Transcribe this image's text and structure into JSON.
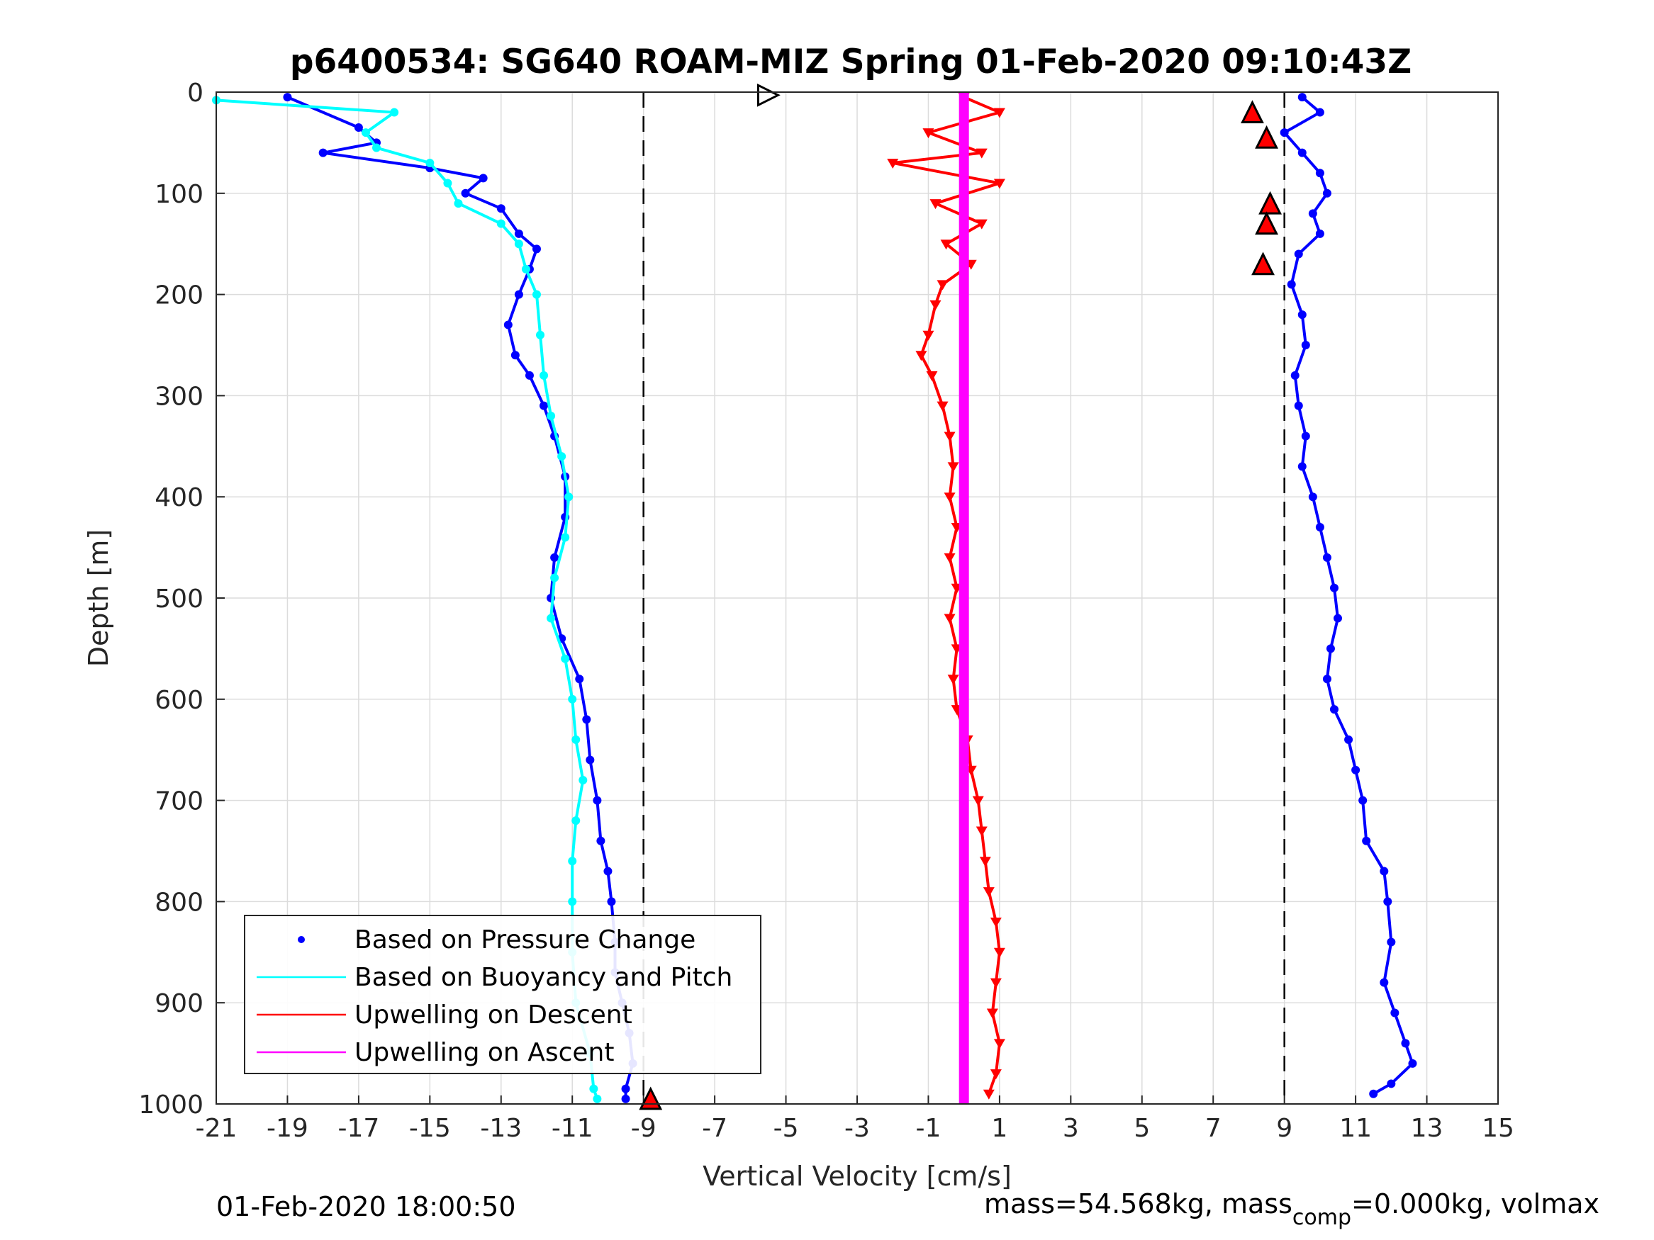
{
  "chart_data": {
    "type": "scatter",
    "title": "p6400534: SG640 ROAM-MIZ Spring 01-Feb-2020 09:10:43Z",
    "xlabel": "Vertical Velocity [cm/s]",
    "ylabel": "Depth [m]",
    "xlim": [
      -21,
      15
    ],
    "ylim": [
      1000,
      0
    ],
    "y_reversed": true,
    "grid": true,
    "xticks": [
      "-21",
      "-19",
      "-17",
      "-15",
      "-13",
      "-11",
      "-9",
      "-7",
      "-5",
      "-3",
      "-1",
      "1",
      "3",
      "5",
      "7",
      "9",
      "11",
      "13",
      "15"
    ],
    "yticks": [
      "0",
      "100",
      "200",
      "300",
      "400",
      "500",
      "600",
      "700",
      "800",
      "900",
      "1000"
    ],
    "threshold_lines": [
      -9,
      9
    ],
    "legend": {
      "placement": "bottom-left",
      "entries": [
        {
          "label": "Based on Pressure Change",
          "color": "#0000ff",
          "style": "dot"
        },
        {
          "label": "Based on Buoyancy and Pitch",
          "color": "#00ffff",
          "style": "line"
        },
        {
          "label": "Upwelling on Descent",
          "color": "#ff0000",
          "style": "line"
        },
        {
          "label": "Upwelling on Ascent",
          "color": "#ff00ff",
          "style": "line"
        }
      ]
    },
    "series": [
      {
        "name": "Based on Pressure Change (descent)",
        "color": "#0000ff",
        "points": [
          [
            -19,
            5
          ],
          [
            -17,
            35
          ],
          [
            -16.5,
            50
          ],
          [
            -18,
            60
          ],
          [
            -15,
            75
          ],
          [
            -13.5,
            85
          ],
          [
            -14,
            100
          ],
          [
            -13,
            115
          ],
          [
            -12.5,
            140
          ],
          [
            -12,
            155
          ],
          [
            -12.2,
            175
          ],
          [
            -12.5,
            200
          ],
          [
            -12.8,
            230
          ],
          [
            -12.6,
            260
          ],
          [
            -12.2,
            280
          ],
          [
            -11.8,
            310
          ],
          [
            -11.5,
            340
          ],
          [
            -11.2,
            380
          ],
          [
            -11.2,
            420
          ],
          [
            -11.5,
            460
          ],
          [
            -11.6,
            500
          ],
          [
            -11.3,
            540
          ],
          [
            -10.8,
            580
          ],
          [
            -10.6,
            620
          ],
          [
            -10.5,
            660
          ],
          [
            -10.3,
            700
          ],
          [
            -10.2,
            740
          ],
          [
            -10.0,
            770
          ],
          [
            -9.9,
            800
          ],
          [
            -9.8,
            840
          ],
          [
            -9.8,
            870
          ],
          [
            -9.6,
            900
          ],
          [
            -9.4,
            930
          ],
          [
            -9.3,
            960
          ],
          [
            -9.5,
            985
          ],
          [
            -9.5,
            995
          ]
        ]
      },
      {
        "name": "Based on Buoyancy and Pitch",
        "color": "#00ffff",
        "points": [
          [
            -21,
            8
          ],
          [
            -16,
            20
          ],
          [
            -16.8,
            40
          ],
          [
            -16.5,
            55
          ],
          [
            -15,
            70
          ],
          [
            -14.5,
            90
          ],
          [
            -14.2,
            110
          ],
          [
            -13,
            130
          ],
          [
            -12.5,
            150
          ],
          [
            -12.3,
            175
          ],
          [
            -12,
            200
          ],
          [
            -11.9,
            240
          ],
          [
            -11.8,
            280
          ],
          [
            -11.6,
            320
          ],
          [
            -11.3,
            360
          ],
          [
            -11.1,
            400
          ],
          [
            -11.2,
            440
          ],
          [
            -11.5,
            480
          ],
          [
            -11.6,
            520
          ],
          [
            -11.2,
            560
          ],
          [
            -11.0,
            600
          ],
          [
            -10.9,
            640
          ],
          [
            -10.7,
            680
          ],
          [
            -10.9,
            720
          ],
          [
            -11.0,
            760
          ],
          [
            -11.0,
            800
          ],
          [
            -11.0,
            850
          ],
          [
            -10.9,
            900
          ],
          [
            -10.5,
            950
          ],
          [
            -10.4,
            985
          ],
          [
            -10.3,
            995
          ]
        ]
      },
      {
        "name": "Based on Pressure Change (ascent)",
        "color": "#0000ff",
        "points": [
          [
            9.5,
            5
          ],
          [
            10,
            20
          ],
          [
            9,
            40
          ],
          [
            9.5,
            60
          ],
          [
            10,
            80
          ],
          [
            10.2,
            100
          ],
          [
            9.8,
            120
          ],
          [
            10,
            140
          ],
          [
            9.4,
            160
          ],
          [
            9.2,
            190
          ],
          [
            9.5,
            220
          ],
          [
            9.6,
            250
          ],
          [
            9.3,
            280
          ],
          [
            9.4,
            310
          ],
          [
            9.6,
            340
          ],
          [
            9.5,
            370
          ],
          [
            9.8,
            400
          ],
          [
            10,
            430
          ],
          [
            10.2,
            460
          ],
          [
            10.4,
            490
          ],
          [
            10.5,
            520
          ],
          [
            10.3,
            550
          ],
          [
            10.2,
            580
          ],
          [
            10.4,
            610
          ],
          [
            10.8,
            640
          ],
          [
            11.0,
            670
          ],
          [
            11.2,
            700
          ],
          [
            11.3,
            740
          ],
          [
            11.8,
            770
          ],
          [
            11.9,
            800
          ],
          [
            12.0,
            840
          ],
          [
            11.8,
            880
          ],
          [
            12.1,
            910
          ],
          [
            12.4,
            940
          ],
          [
            12.6,
            960
          ],
          [
            12.0,
            980
          ],
          [
            11.5,
            990
          ]
        ]
      },
      {
        "name": "Upwelling on Descent",
        "color": "#ff0000",
        "points": [
          [
            0,
            5
          ],
          [
            1,
            20
          ],
          [
            -1,
            40
          ],
          [
            0.5,
            60
          ],
          [
            -2,
            70
          ],
          [
            1,
            90
          ],
          [
            -0.8,
            110
          ],
          [
            0.5,
            130
          ],
          [
            -0.5,
            150
          ],
          [
            0.2,
            170
          ],
          [
            -0.6,
            190
          ],
          [
            -0.8,
            210
          ],
          [
            -1,
            240
          ],
          [
            -1.2,
            260
          ],
          [
            -0.9,
            280
          ],
          [
            -0.6,
            310
          ],
          [
            -0.4,
            340
          ],
          [
            -0.3,
            370
          ],
          [
            -0.4,
            400
          ],
          [
            -0.2,
            430
          ],
          [
            -0.4,
            460
          ],
          [
            -0.2,
            490
          ],
          [
            -0.4,
            520
          ],
          [
            -0.2,
            550
          ],
          [
            -0.3,
            580
          ],
          [
            -0.2,
            610
          ],
          [
            0.1,
            640
          ],
          [
            0.2,
            670
          ],
          [
            0.4,
            700
          ],
          [
            0.5,
            730
          ],
          [
            0.6,
            760
          ],
          [
            0.7,
            790
          ],
          [
            0.9,
            820
          ],
          [
            1.0,
            850
          ],
          [
            0.9,
            880
          ],
          [
            0.8,
            910
          ],
          [
            1.0,
            940
          ],
          [
            0.9,
            970
          ],
          [
            0.7,
            990
          ]
        ]
      },
      {
        "name": "Upwelling on Ascent",
        "color": "#ff00ff",
        "points": [
          [
            0,
            0
          ],
          [
            0,
            250
          ],
          [
            0,
            500
          ],
          [
            0,
            750
          ],
          [
            0,
            1000
          ]
        ]
      }
    ],
    "markers": [
      {
        "x": -5.5,
        "y": 3,
        "shape": "tri-right"
      },
      {
        "x": -8.8,
        "y": 995,
        "shape": "tri-up",
        "fill": "#ff0000"
      },
      {
        "x": 8.1,
        "y": 20,
        "shape": "tri-up",
        "fill": "#ff0000"
      },
      {
        "x": 8.5,
        "y": 45,
        "shape": "tri-up",
        "fill": "#ff0000"
      },
      {
        "x": 8.6,
        "y": 110,
        "shape": "tri-up",
        "fill": "#ff0000"
      },
      {
        "x": 8.5,
        "y": 130,
        "shape": "tri-up",
        "fill": "#ff0000"
      },
      {
        "x": 8.4,
        "y": 170,
        "shape": "tri-up",
        "fill": "#ff0000"
      }
    ],
    "footer_left": "01-Feb-2020 18:00:50",
    "footer_right_prefix": "mass=54.568kg, mass",
    "footer_right_sub": "comp",
    "footer_right_suffix": "=0.000kg, volmax"
  }
}
